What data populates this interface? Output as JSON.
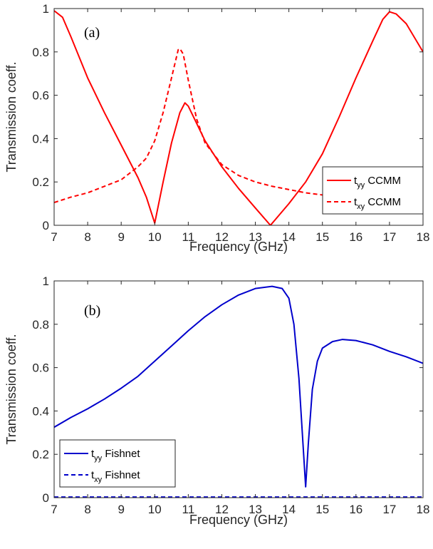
{
  "chart_data": [
    {
      "type": "line",
      "panel_label": "(a)",
      "xlabel": "Frequency (GHz)",
      "ylabel": "Transmission coeff.",
      "xlim": [
        7,
        18
      ],
      "ylim": [
        0,
        1
      ],
      "xticks": [
        7,
        8,
        9,
        10,
        11,
        12,
        13,
        14,
        15,
        16,
        17,
        18
      ],
      "yticks": [
        0,
        0.2,
        0.4,
        0.6,
        0.8,
        1
      ],
      "ytick_labels": [
        "0",
        "0.2",
        "0.4",
        "0.6",
        "0.8",
        "1"
      ],
      "grid": false,
      "legend_position": "bottom-right",
      "series": [
        {
          "name": "t_yy CCMM",
          "legend_main": "t",
          "legend_sub": "yy",
          "legend_suffix": " CCMM",
          "color": "#ff0000",
          "style": "solid",
          "points": [
            [
              7,
              0.99
            ],
            [
              7.25,
              0.96
            ],
            [
              7.5,
              0.87
            ],
            [
              8,
              0.68
            ],
            [
              8.5,
              0.52
            ],
            [
              9,
              0.37
            ],
            [
              9.5,
              0.22
            ],
            [
              9.75,
              0.13
            ],
            [
              10,
              0.01
            ],
            [
              10.25,
              0.2
            ],
            [
              10.5,
              0.38
            ],
            [
              10.75,
              0.52
            ],
            [
              10.9,
              0.565
            ],
            [
              11,
              0.55
            ],
            [
              11.25,
              0.47
            ],
            [
              11.5,
              0.39
            ],
            [
              12,
              0.27
            ],
            [
              12.5,
              0.17
            ],
            [
              13,
              0.08
            ],
            [
              13.45,
              0.0
            ],
            [
              14,
              0.1
            ],
            [
              14.5,
              0.2
            ],
            [
              15,
              0.33
            ],
            [
              15.5,
              0.5
            ],
            [
              16,
              0.68
            ],
            [
              16.5,
              0.85
            ],
            [
              16.8,
              0.95
            ],
            [
              17,
              0.985
            ],
            [
              17.2,
              0.975
            ],
            [
              17.5,
              0.93
            ],
            [
              18,
              0.8
            ]
          ]
        },
        {
          "name": "t_xy CCMM",
          "legend_main": "t",
          "legend_sub": "xy",
          "legend_suffix": " CCMM",
          "color": "#ff0000",
          "style": "dashed",
          "points": [
            [
              7,
              0.105
            ],
            [
              7.5,
              0.13
            ],
            [
              8,
              0.15
            ],
            [
              8.5,
              0.18
            ],
            [
              9,
              0.21
            ],
            [
              9.5,
              0.27
            ],
            [
              9.75,
              0.31
            ],
            [
              10,
              0.39
            ],
            [
              10.25,
              0.52
            ],
            [
              10.5,
              0.68
            ],
            [
              10.7,
              0.81
            ],
            [
              10.75,
              0.815
            ],
            [
              10.85,
              0.79
            ],
            [
              11,
              0.67
            ],
            [
              11.25,
              0.49
            ],
            [
              11.5,
              0.38
            ],
            [
              12,
              0.28
            ],
            [
              12.5,
              0.23
            ],
            [
              13,
              0.2
            ],
            [
              13.5,
              0.18
            ],
            [
              14,
              0.165
            ],
            [
              14.5,
              0.15
            ],
            [
              15,
              0.14
            ],
            [
              15.5,
              0.135
            ]
          ]
        }
      ]
    },
    {
      "type": "line",
      "panel_label": "(b)",
      "xlabel": "Frequency (GHz)",
      "ylabel": "Transmission coeff.",
      "xlim": [
        7,
        18
      ],
      "ylim": [
        0,
        1
      ],
      "xticks": [
        7,
        8,
        9,
        10,
        11,
        12,
        13,
        14,
        15,
        16,
        17,
        18
      ],
      "yticks": [
        0,
        0.2,
        0.4,
        0.6,
        0.8,
        1
      ],
      "ytick_labels": [
        "0",
        "0.2",
        "0.4",
        "0.6",
        "0.8",
        "1"
      ],
      "grid": false,
      "legend_position": "bottom-left",
      "series": [
        {
          "name": "t_yy Fishnet",
          "legend_main": "t",
          "legend_sub": "yy",
          "legend_suffix": " Fishnet",
          "color": "#0000cc",
          "style": "solid",
          "points": [
            [
              7,
              0.325
            ],
            [
              7.5,
              0.37
            ],
            [
              8,
              0.41
            ],
            [
              8.5,
              0.455
            ],
            [
              9,
              0.505
            ],
            [
              9.5,
              0.56
            ],
            [
              10,
              0.63
            ],
            [
              10.5,
              0.7
            ],
            [
              11,
              0.77
            ],
            [
              11.5,
              0.835
            ],
            [
              12,
              0.89
            ],
            [
              12.5,
              0.935
            ],
            [
              13,
              0.965
            ],
            [
              13.5,
              0.975
            ],
            [
              13.8,
              0.965
            ],
            [
              14,
              0.92
            ],
            [
              14.15,
              0.8
            ],
            [
              14.3,
              0.55
            ],
            [
              14.42,
              0.25
            ],
            [
              14.5,
              0.05
            ],
            [
              14.58,
              0.25
            ],
            [
              14.7,
              0.5
            ],
            [
              14.85,
              0.63
            ],
            [
              15,
              0.69
            ],
            [
              15.3,
              0.72
            ],
            [
              15.6,
              0.73
            ],
            [
              16,
              0.725
            ],
            [
              16.5,
              0.705
            ],
            [
              17,
              0.675
            ],
            [
              17.5,
              0.65
            ],
            [
              18,
              0.62
            ]
          ]
        },
        {
          "name": "t_xy Fishnet",
          "legend_main": "t",
          "legend_sub": "xy",
          "legend_suffix": " Fishnet",
          "color": "#0000cc",
          "style": "dashed",
          "points": [
            [
              7,
              0.003
            ],
            [
              18,
              0.003
            ]
          ]
        }
      ]
    }
  ]
}
